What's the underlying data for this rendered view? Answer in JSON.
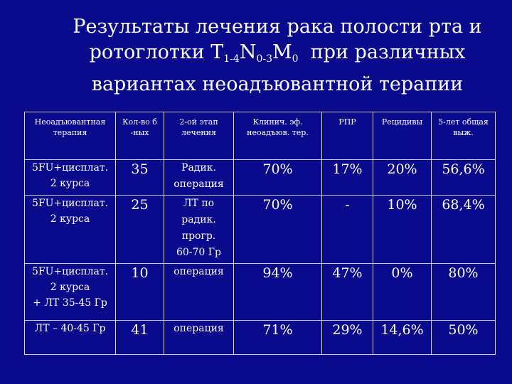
{
  "slide": {
    "title_line1": "Результаты лечения рака полости рта и",
    "title_line2_prefix": "ротоглотки Т",
    "title_sub1": "1-4",
    "title_n": "N",
    "title_sub2": "0-3",
    "title_m": "M",
    "title_sub3": "0",
    "title_line2_suffix": "при различных",
    "title_line3": "вариантах неоадъювантной терапии"
  },
  "table": {
    "headers": [
      "Неоадъювантная терапия",
      "Кол-во б -ных",
      "2-ой этап лечения",
      "Клинич. эф. неоадъюв. тер.",
      "РПР",
      "Рецидивы",
      "5-лет общая выж."
    ],
    "rows": [
      {
        "treatment": "5FU+цисплат.\n2 курса",
        "count": "35",
        "stage2": "Радик.\nоперация",
        "clin": "70%",
        "rpr": "17%",
        "recur": "20%",
        "surv": "56,6%"
      },
      {
        "treatment": "5FU+цисплат.\n2 курса",
        "count": "25",
        "stage2": "ЛТ по\nрадик.\nпрогр.\n60-70 Гр",
        "clin": "70%",
        "rpr": "-",
        "recur": "10%",
        "surv": "68,4%"
      },
      {
        "treatment": "5FU+цисплат.\n2 курса\n+ ЛТ 35-45 Гр",
        "count": "10",
        "stage2": "операция",
        "clin": "94%",
        "rpr": "47%",
        "recur": "0%",
        "surv": "80%"
      },
      {
        "treatment": "ЛТ – 40-45 Гр",
        "count": "41",
        "stage2": "операция",
        "clin": "71%",
        "rpr": "29%",
        "recur": "14,6%",
        "surv": "50%"
      }
    ]
  }
}
